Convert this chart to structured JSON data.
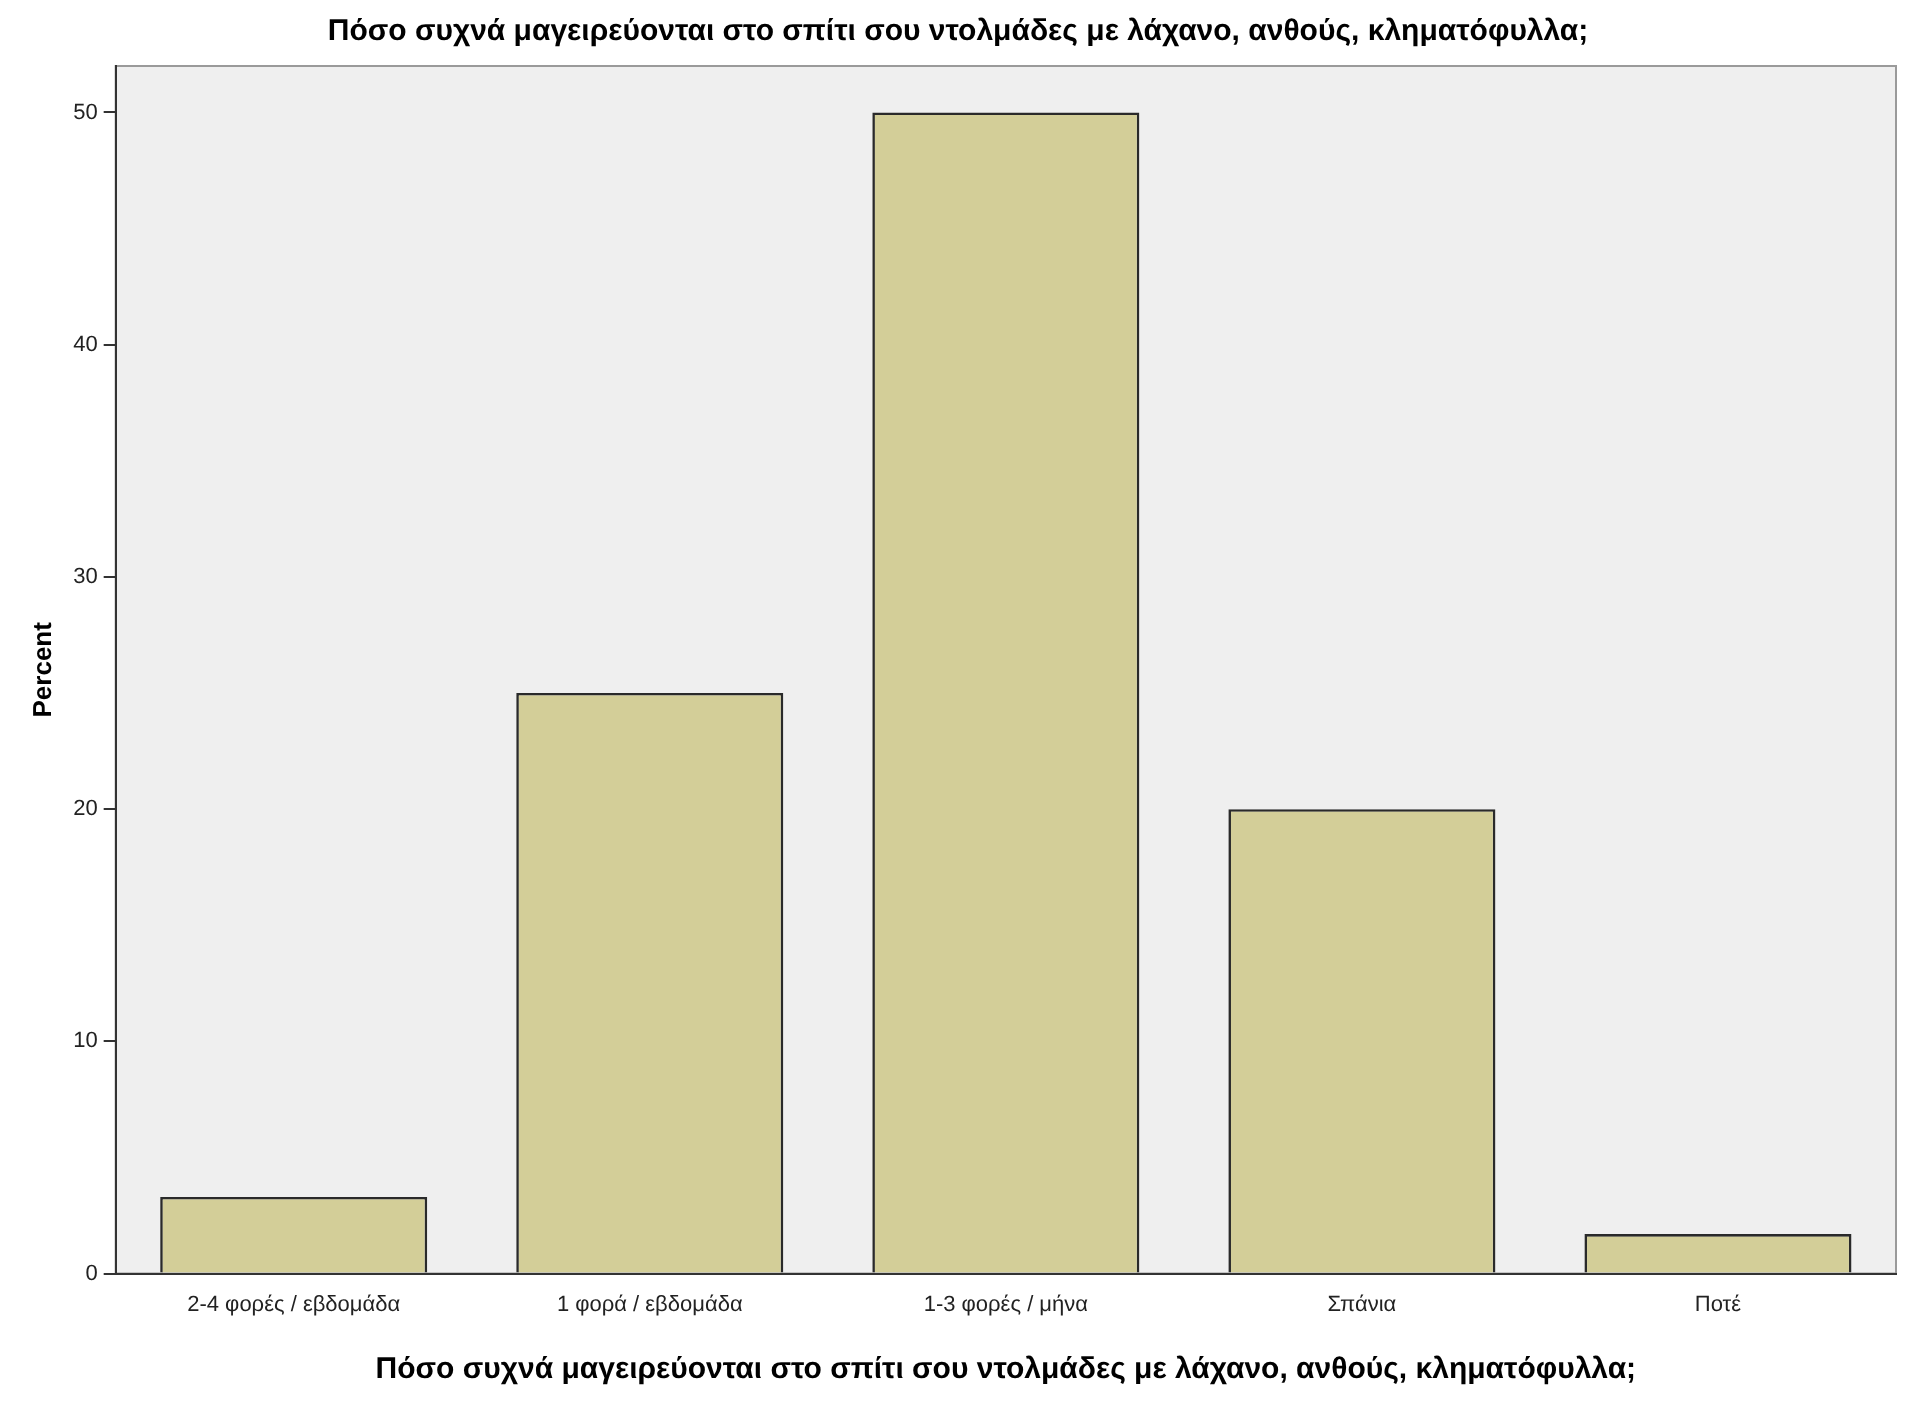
{
  "chart_data": {
    "type": "bar",
    "title": "Πόσο συχνά μαγειρεύονται στο σπίτι σου ντολμάδες με λάχανο, ανθούς, κληματόφυλλα;",
    "xlabel": "Πόσο συχνά μαγειρεύονται στο σπίτι σου ντολμάδες με λάχανο, ανθούς, κληματόφυλλα;",
    "ylabel": "Percent",
    "categories": [
      "2-4 φορές / εβδομάδα",
      "1 φορά / εβδομάδα",
      "1-3 φορές / μήνα",
      "Σπάνια",
      "Ποτέ"
    ],
    "values": [
      3.3,
      25,
      50,
      20,
      1.7
    ],
    "color": "#d3ce98",
    "ylim": [
      0,
      52
    ],
    "yticks": [
      0,
      10,
      20,
      30,
      40,
      50
    ],
    "grid": false,
    "legend": false
  }
}
